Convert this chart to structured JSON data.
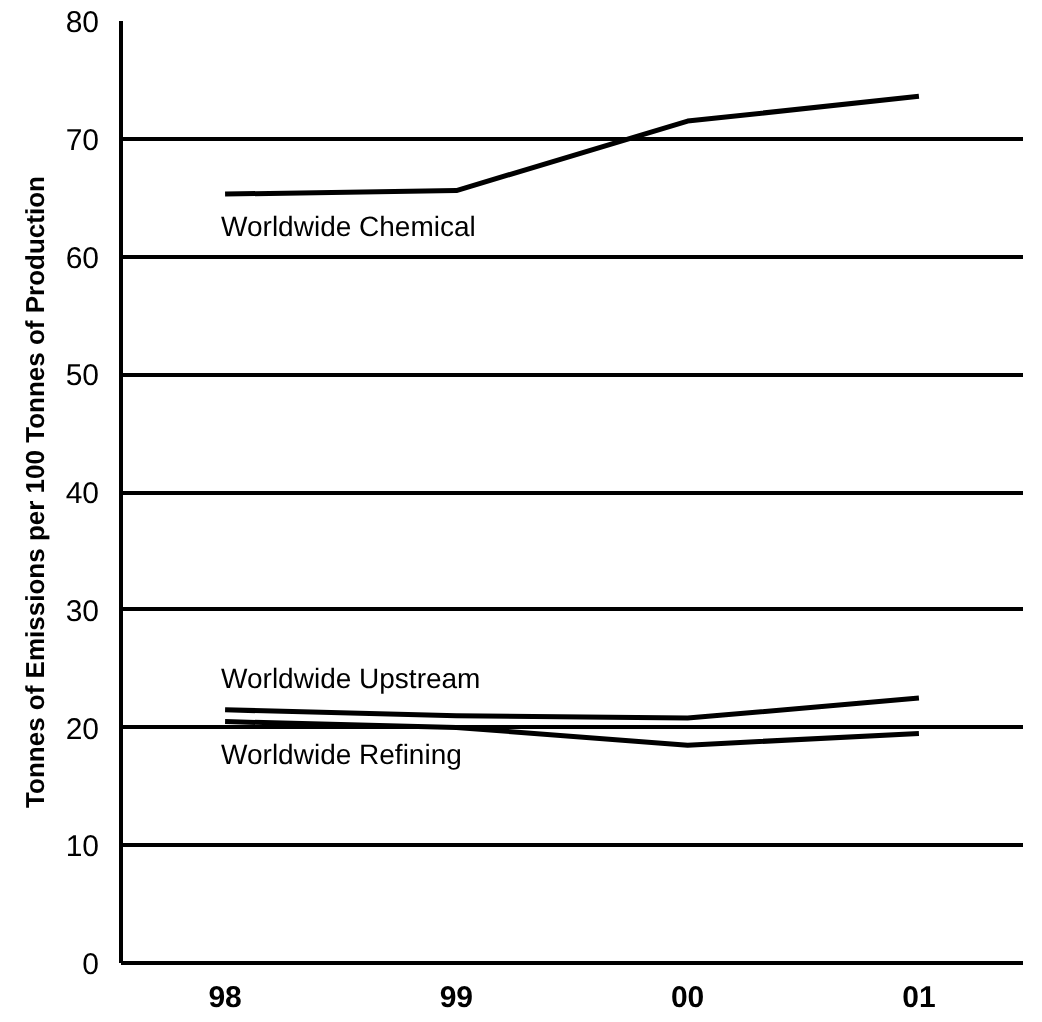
{
  "chart_data": {
    "type": "line",
    "ylabel": "Tonnes of Emissions per 100 Tonnes of Production",
    "categories": [
      "98",
      "99",
      "00",
      "01"
    ],
    "series": [
      {
        "name": "Worldwide Chemical",
        "color": "#000000",
        "values": [
          65.3,
          65.6,
          71.5,
          73.6
        ]
      },
      {
        "name": "Worldwide Upstream",
        "color": "#000000",
        "values": [
          21.5,
          21,
          20.8,
          22.5
        ]
      },
      {
        "name": "Worldwide Refining",
        "color": "#000000",
        "values": [
          20.5,
          20,
          18.5,
          19.5
        ]
      }
    ],
    "ylim": [
      0,
      80
    ],
    "yticks": [
      0,
      10,
      20,
      30,
      40,
      50,
      60,
      70,
      80
    ],
    "grid": "y",
    "marker": "none",
    "line_style": "solid"
  }
}
